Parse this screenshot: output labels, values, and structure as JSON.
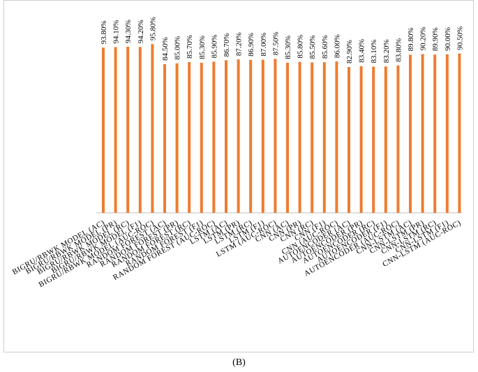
{
  "caption": "(B)",
  "chart_data": {
    "type": "bar",
    "title": "",
    "xlabel": "",
    "ylabel": "",
    "ylim": [
      60,
      100
    ],
    "grid": false,
    "legend": "none",
    "bar_color": "#ED7D31",
    "categories": [
      "BIGRU/RBWK MODEL (AC)",
      "BIGRU/RBWK MODEL (PR)",
      "BIGRU/RBWK MODEL (RC)",
      "BIGRU/RBWK MODEL (F1)",
      "BIGRU/RBWK MODEL (AUC-ROC)",
      "RANDOM FOREST (AC)",
      "RANDOM FOREST (PR)",
      "RANDOM FOREST (RC)",
      "RANDOM FOREST (F1)",
      "RANDOM FOREST (AUC-ROC)",
      "LSTM (AC)",
      "LSTM (PR)",
      "LSTM (RC)",
      "LSTM (F1)",
      "LSTM (AUC-ROC)",
      "CNN (AC)",
      "CNN (PR)",
      "CNN (RC)",
      "CNN (F1)",
      "CNN (AUC-ROC)",
      "AUTOENCODER (AC)",
      "AUTOENCODER (PR)",
      "AUTOENCODER (RC)",
      "AUTOENCODER (F1)",
      "AUTOENCODER (AUC-ROC)",
      "CNN-LSTM (AC)",
      "CNN-LSTM (PR)",
      "CNN-LSTM (RC)",
      "CNN-LSTM (F1)",
      "CNN-LSTM (AUC-ROC)"
    ],
    "values": [
      93.8,
      94.1,
      94.3,
      94.2,
      95.8,
      84.5,
      85.0,
      85.7,
      85.3,
      85.9,
      86.7,
      87.2,
      86.9,
      87.0,
      87.5,
      85.3,
      85.8,
      85.5,
      85.6,
      86.0,
      82.9,
      83.4,
      83.1,
      83.2,
      83.8,
      89.8,
      90.2,
      89.9,
      90.0,
      90.5
    ],
    "data_labels": [
      "93.80%",
      "94.10%",
      "94.30%",
      "94.20%",
      "95.80%",
      "84.50%",
      "85.00%",
      "85.70%",
      "85.30%",
      "85.90%",
      "86.70%",
      "87.20%",
      "86.90%",
      "87.00%",
      "87.50%",
      "85.30%",
      "85.80%",
      "85.50%",
      "85.60%",
      "86.00%",
      "82.90%",
      "83.40%",
      "83.10%",
      "83.20%",
      "83.80%",
      "89.80%",
      "90.20%",
      "89.90%",
      "90.00%",
      "90.50%"
    ]
  }
}
